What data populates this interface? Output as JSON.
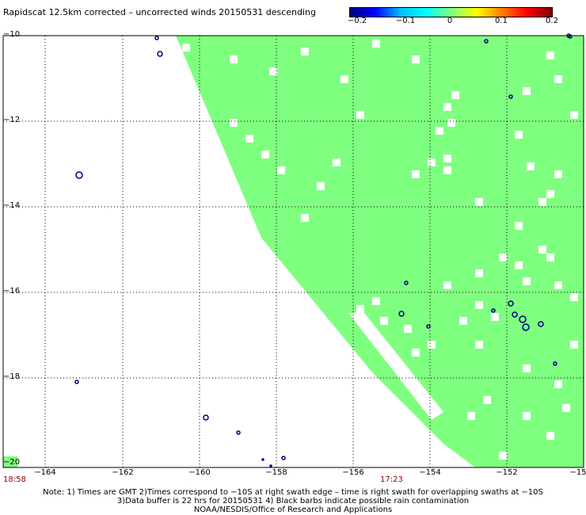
{
  "title": "Rapidscat 12.5km corrected – uncorrected winds 20150531 descending",
  "colorbar": {
    "labels": [
      "−0.2",
      "−0.1",
      "0",
      "0.1",
      "0.2"
    ],
    "colors": [
      "#00007f",
      "#0000ff",
      "#00ffff",
      "#7fff7f",
      "#ffff00",
      "#ff7f00",
      "#ff0000",
      "#7f0000"
    ]
  },
  "map": {
    "lat_labels": [
      "−10",
      "−12",
      "−14",
      "−16",
      "−18",
      "−20"
    ],
    "lon_labels": [
      "−164",
      "−162",
      "−160",
      "−158",
      "−156",
      "−154",
      "−152",
      "−15"
    ],
    "swath_color": "#7fff7f",
    "land_color": "#000080"
  },
  "times": {
    "left": "18:58",
    "right": "17:23"
  },
  "notes": [
    "Note: 1) Times are GMT 2)Times correspond to −10S at right swath edge – time is right swath for overlapping swaths at −10S",
    "3)Data buffer is 22 hrs for 20150531 4) Black barbs indicate possible rain contamination",
    "NOAA/NESDIS/Office of Research and Applications"
  ]
}
